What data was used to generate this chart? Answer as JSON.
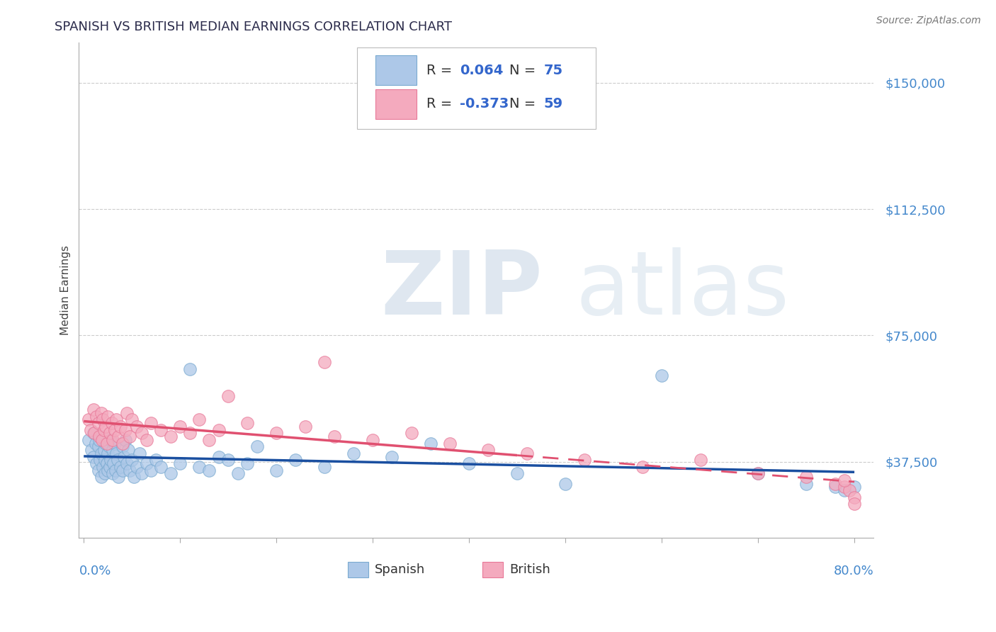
{
  "title": "SPANISH VS BRITISH MEDIAN EARNINGS CORRELATION CHART",
  "source": "Source: ZipAtlas.com",
  "ylabel": "Median Earnings",
  "ytick_values": [
    37500,
    75000,
    112500,
    150000
  ],
  "ymin": 15000,
  "ymax": 162000,
  "xmin": -0.005,
  "xmax": 0.82,
  "spanish_color": "#adc8e8",
  "british_color": "#f4aabe",
  "spanish_edge": "#7aaad0",
  "british_edge": "#e87898",
  "trend_blue": "#1a4fa0",
  "trend_pink": "#e05070",
  "legend_r_color": "#333333",
  "legend_val_color": "#3366cc",
  "background": "#ffffff",
  "grid_color": "#cccccc",
  "title_color": "#2a2a4a",
  "axis_val_color": "#4488cc",
  "spanish_x": [
    0.005,
    0.008,
    0.01,
    0.01,
    0.012,
    0.013,
    0.015,
    0.015,
    0.016,
    0.017,
    0.018,
    0.018,
    0.02,
    0.02,
    0.021,
    0.022,
    0.022,
    0.023,
    0.024,
    0.025,
    0.025,
    0.026,
    0.027,
    0.028,
    0.028,
    0.03,
    0.03,
    0.031,
    0.032,
    0.033,
    0.034,
    0.035,
    0.036,
    0.038,
    0.04,
    0.04,
    0.042,
    0.043,
    0.045,
    0.046,
    0.048,
    0.05,
    0.052,
    0.055,
    0.058,
    0.06,
    0.065,
    0.07,
    0.075,
    0.08,
    0.09,
    0.1,
    0.11,
    0.12,
    0.13,
    0.14,
    0.15,
    0.16,
    0.17,
    0.18,
    0.2,
    0.22,
    0.25,
    0.28,
    0.32,
    0.36,
    0.4,
    0.45,
    0.5,
    0.6,
    0.7,
    0.75,
    0.78,
    0.79,
    0.8
  ],
  "spanish_y": [
    44000,
    41000,
    46000,
    39000,
    43000,
    37000,
    42000,
    35000,
    44000,
    38000,
    40000,
    33000,
    45000,
    36000,
    41000,
    38000,
    34000,
    43000,
    37000,
    40000,
    35000,
    42000,
    36000,
    44000,
    38000,
    41000,
    34000,
    37000,
    43000,
    35000,
    40000,
    38000,
    33000,
    36000,
    42000,
    35000,
    39000,
    44000,
    37000,
    41000,
    35000,
    38000,
    33000,
    36000,
    40000,
    34000,
    37000,
    35000,
    38000,
    36000,
    34000,
    37000,
    65000,
    36000,
    35000,
    39000,
    38000,
    34000,
    37000,
    42000,
    35000,
    38000,
    36000,
    40000,
    39000,
    43000,
    37000,
    34000,
    31000,
    63000,
    34000,
    31000,
    30000,
    29000,
    30000
  ],
  "british_x": [
    0.005,
    0.007,
    0.01,
    0.011,
    0.013,
    0.015,
    0.016,
    0.018,
    0.019,
    0.02,
    0.021,
    0.023,
    0.024,
    0.025,
    0.027,
    0.029,
    0.03,
    0.032,
    0.034,
    0.036,
    0.038,
    0.04,
    0.043,
    0.045,
    0.048,
    0.05,
    0.055,
    0.06,
    0.065,
    0.07,
    0.08,
    0.09,
    0.1,
    0.11,
    0.12,
    0.13,
    0.14,
    0.15,
    0.17,
    0.2,
    0.23,
    0.26,
    0.3,
    0.34,
    0.38,
    0.42,
    0.46,
    0.52,
    0.58,
    0.64,
    0.7,
    0.75,
    0.78,
    0.79,
    0.795,
    0.8,
    0.8,
    0.79,
    0.25
  ],
  "british_y": [
    50000,
    47000,
    53000,
    46000,
    51000,
    49000,
    45000,
    52000,
    44000,
    50000,
    47000,
    48000,
    43000,
    51000,
    46000,
    49000,
    44000,
    47000,
    50000,
    45000,
    48000,
    43000,
    47000,
    52000,
    45000,
    50000,
    48000,
    46000,
    44000,
    49000,
    47000,
    45000,
    48000,
    46000,
    50000,
    44000,
    47000,
    57000,
    49000,
    46000,
    48000,
    45000,
    44000,
    46000,
    43000,
    41000,
    40000,
    38000,
    36000,
    38000,
    34000,
    33000,
    31000,
    30000,
    29000,
    27000,
    25000,
    32000,
    67000
  ],
  "trend_split": 0.45
}
